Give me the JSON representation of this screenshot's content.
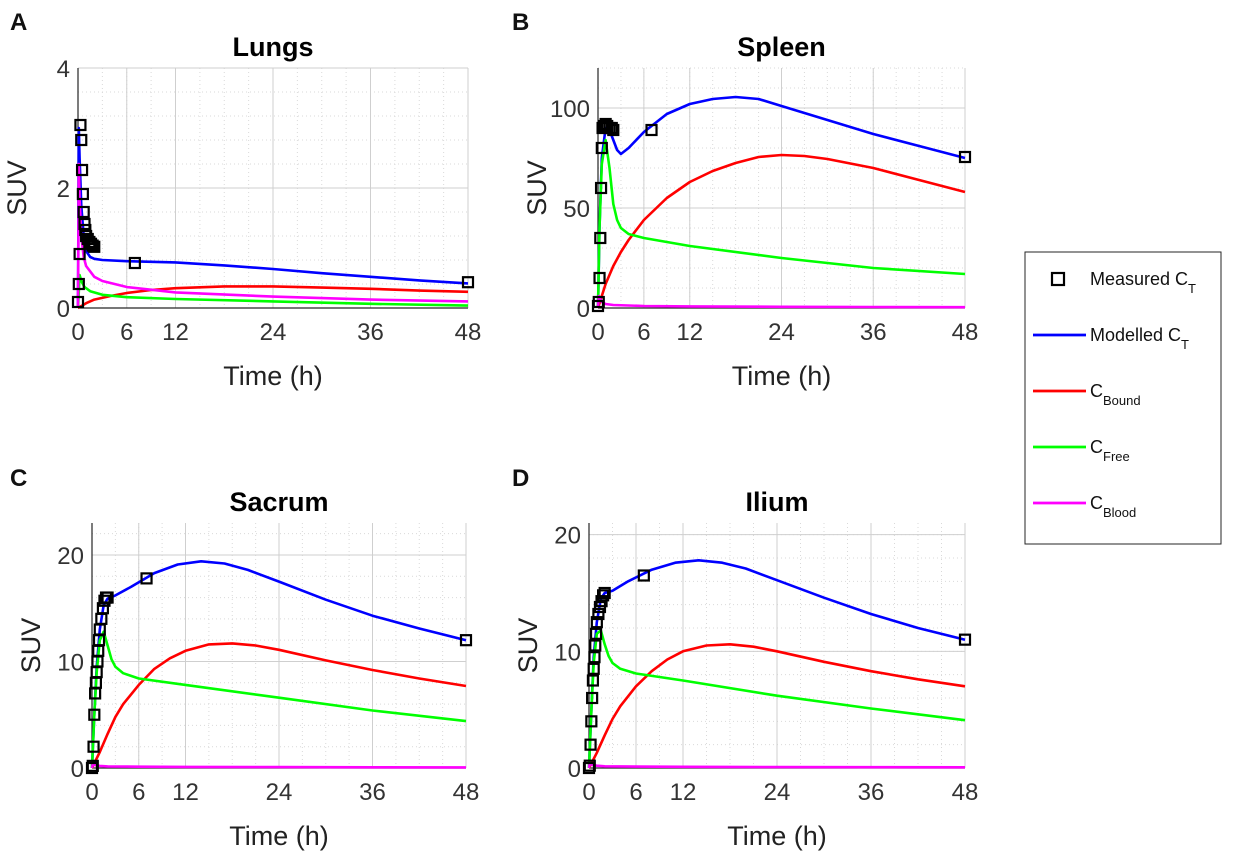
{
  "legend": {
    "entries": [
      {
        "label": "Measured C",
        "sub": "T",
        "kind": "marker",
        "color": "#000000"
      },
      {
        "label": "Modelled C",
        "sub": "T",
        "kind": "line",
        "color": "#0000ff"
      },
      {
        "label": "C",
        "sub": "Bound",
        "kind": "line",
        "color": "#ff0000"
      },
      {
        "label": "C",
        "sub": "Free",
        "kind": "line",
        "color": "#00ff00"
      },
      {
        "label": "C",
        "sub": "Blood",
        "kind": "line",
        "color": "#ff00ff"
      }
    ]
  },
  "chart_data": [
    {
      "panel": "A",
      "type": "line",
      "title": "Lungs",
      "xlabel": "Time (h)",
      "ylabel": "SUV",
      "xlim": [
        0,
        48
      ],
      "ylim": [
        0,
        4
      ],
      "xticks": [
        0,
        6,
        12,
        24,
        36,
        48
      ],
      "yticks": [
        0,
        2,
        4
      ],
      "grid": true,
      "legend": "right (shared)",
      "series": [
        {
          "name": "Modelled C_T",
          "color": "#0000ff",
          "x": [
            0,
            0.1,
            0.2,
            0.4,
            0.7,
            1,
            1.5,
            2,
            3,
            6,
            12,
            18,
            24,
            30,
            36,
            42,
            48
          ],
          "y": [
            0,
            3.0,
            2.5,
            1.7,
            1.2,
            0.95,
            0.85,
            0.82,
            0.8,
            0.78,
            0.76,
            0.71,
            0.65,
            0.58,
            0.52,
            0.46,
            0.41
          ]
        },
        {
          "name": "C_Bound",
          "color": "#ff0000",
          "x": [
            0,
            0.5,
            1,
            2,
            4,
            6,
            9,
            12,
            18,
            24,
            30,
            36,
            42,
            48
          ],
          "y": [
            0,
            0.04,
            0.08,
            0.14,
            0.2,
            0.25,
            0.3,
            0.33,
            0.36,
            0.36,
            0.34,
            0.32,
            0.29,
            0.27
          ]
        },
        {
          "name": "C_Free",
          "color": "#00ff00",
          "x": [
            0,
            0.2,
            0.4,
            0.8,
            1.5,
            3,
            6,
            12,
            24,
            36,
            48
          ],
          "y": [
            0,
            0.55,
            0.45,
            0.35,
            0.28,
            0.22,
            0.18,
            0.15,
            0.11,
            0.07,
            0.04
          ]
        },
        {
          "name": "C_Blood",
          "color": "#ff00ff",
          "x": [
            0,
            0.1,
            0.2,
            0.4,
            0.7,
            1,
            2,
            3,
            6,
            12,
            24,
            36,
            48
          ],
          "y": [
            0,
            2.4,
            1.8,
            1.2,
            0.85,
            0.7,
            0.52,
            0.45,
            0.35,
            0.26,
            0.19,
            0.14,
            0.11
          ]
        },
        {
          "name": "Measured C_T",
          "color": "#000000",
          "marker": "square",
          "x": [
            0,
            0.1,
            0.2,
            0.3,
            0.4,
            0.5,
            0.6,
            0.7,
            0.8,
            0.9,
            1.0,
            1.2,
            1.4,
            1.6,
            1.8,
            2.0,
            7,
            48
          ],
          "y": [
            0.1,
            0.4,
            0.9,
            3.05,
            2.8,
            2.3,
            1.9,
            1.6,
            1.4,
            1.3,
            1.2,
            1.15,
            1.1,
            1.07,
            1.04,
            1.02,
            0.75,
            0.43
          ]
        }
      ]
    },
    {
      "panel": "B",
      "type": "line",
      "title": "Spleen",
      "xlabel": "Time (h)",
      "ylabel": "SUV",
      "xlim": [
        0,
        48
      ],
      "ylim": [
        0,
        120
      ],
      "xticks": [
        0,
        6,
        12,
        24,
        36,
        48
      ],
      "yticks": [
        0,
        50,
        100
      ],
      "grid": true,
      "legend": "right (shared)",
      "series": [
        {
          "name": "Modelled C_T",
          "color": "#0000ff",
          "x": [
            0,
            0.2,
            0.5,
            1,
            1.5,
            2,
            2.5,
            3,
            4,
            6,
            9,
            12,
            15,
            18,
            21,
            24,
            30,
            36,
            42,
            48
          ],
          "y": [
            0,
            40,
            75,
            90,
            89,
            84,
            79,
            77,
            80,
            88,
            97,
            102,
            104.5,
            105.5,
            104.5,
            101,
            94,
            87,
            81,
            75
          ]
        },
        {
          "name": "C_Bound",
          "color": "#ff0000",
          "x": [
            0,
            0.5,
            1,
            2,
            3,
            4,
            6,
            9,
            12,
            15,
            18,
            21,
            24,
            27,
            30,
            36,
            42,
            48
          ],
          "y": [
            0,
            6,
            12,
            21,
            28,
            34,
            44,
            55,
            63,
            68.5,
            72.5,
            75.5,
            76.5,
            76,
            74.5,
            70,
            64,
            58
          ]
        },
        {
          "name": "C_Free",
          "color": "#00ff00",
          "x": [
            0,
            0.2,
            0.5,
            1,
            1.5,
            2,
            2.5,
            3,
            4,
            6,
            12,
            24,
            36,
            48
          ],
          "y": [
            0,
            40,
            72,
            84,
            70,
            52,
            44,
            40,
            37,
            35,
            31,
            25,
            20,
            17
          ]
        },
        {
          "name": "C_Blood",
          "color": "#ff00ff",
          "x": [
            0,
            0.1,
            0.5,
            1,
            2,
            6,
            12,
            24,
            36,
            48
          ],
          "y": [
            0,
            6,
            3,
            2,
            1.5,
            1,
            0.8,
            0.6,
            0.5,
            0.4
          ]
        },
        {
          "name": "Measured C_T",
          "color": "#000000",
          "marker": "square",
          "x": [
            0,
            0.1,
            0.2,
            0.3,
            0.4,
            0.5,
            0.6,
            0.8,
            1.0,
            1.2,
            1.5,
            1.8,
            2.0,
            7,
            48
          ],
          "y": [
            1,
            3,
            15,
            35,
            60,
            80,
            90,
            91,
            92,
            91,
            90,
            90,
            89,
            89,
            75.5
          ]
        }
      ]
    },
    {
      "panel": "C",
      "type": "line",
      "title": "Sacrum",
      "xlabel": "Time (h)",
      "ylabel": "SUV",
      "xlim": [
        0,
        48
      ],
      "ylim": [
        0,
        23
      ],
      "xticks": [
        0,
        6,
        12,
        24,
        36,
        48
      ],
      "yticks": [
        0,
        10,
        20
      ],
      "grid": true,
      "legend": "right (shared)",
      "series": [
        {
          "name": "Modelled C_T",
          "color": "#0000ff",
          "x": [
            0,
            0.3,
            0.6,
            1,
            1.5,
            2,
            3,
            5,
            8,
            11,
            14,
            17,
            20,
            24,
            30,
            36,
            42,
            48
          ],
          "y": [
            0,
            5,
            9.5,
            13,
            15.3,
            15.9,
            16.2,
            17,
            18.3,
            19.1,
            19.4,
            19.2,
            18.6,
            17.5,
            15.8,
            14.3,
            13.1,
            12
          ]
        },
        {
          "name": "C_Bound",
          "color": "#ff0000",
          "x": [
            0,
            1,
            2,
            3,
            4,
            6,
            8,
            10,
            12,
            15,
            18,
            21,
            24,
            30,
            36,
            42,
            48
          ],
          "y": [
            0,
            1.5,
            3.2,
            4.8,
            6,
            7.8,
            9.3,
            10.3,
            11,
            11.6,
            11.7,
            11.5,
            11.1,
            10.1,
            9.2,
            8.4,
            7.7
          ]
        },
        {
          "name": "C_Free",
          "color": "#00ff00",
          "x": [
            0,
            0.3,
            0.6,
            1,
            1.5,
            2,
            2.5,
            3,
            4,
            6,
            12,
            24,
            36,
            48
          ],
          "y": [
            0,
            5,
            9,
            12,
            12.8,
            11.5,
            10.2,
            9.5,
            8.9,
            8.4,
            7.8,
            6.6,
            5.4,
            4.4
          ]
        },
        {
          "name": "C_Blood",
          "color": "#ff00ff",
          "x": [
            0,
            0.1,
            0.5,
            1,
            2,
            6,
            12,
            24,
            36,
            48
          ],
          "y": [
            0,
            0.4,
            0.25,
            0.2,
            0.15,
            0.12,
            0.1,
            0.08,
            0.07,
            0.06
          ]
        },
        {
          "name": "Measured C_T",
          "color": "#000000",
          "marker": "square",
          "x": [
            0,
            0.1,
            0.2,
            0.3,
            0.4,
            0.5,
            0.6,
            0.7,
            0.8,
            0.9,
            1.0,
            1.2,
            1.4,
            1.6,
            1.8,
            2.0,
            7,
            48
          ],
          "y": [
            0,
            0.2,
            2,
            5,
            7,
            8,
            9,
            10,
            11,
            12,
            13,
            14,
            15,
            15.7,
            16,
            16,
            17.8,
            12
          ]
        }
      ]
    },
    {
      "panel": "D",
      "type": "line",
      "title": "Ilium",
      "xlabel": "Time (h)",
      "ylabel": "SUV",
      "xlim": [
        0,
        48
      ],
      "ylim": [
        0,
        21
      ],
      "xticks": [
        0,
        6,
        12,
        24,
        36,
        48
      ],
      "yticks": [
        0,
        10,
        20
      ],
      "grid": true,
      "legend": "right (shared)",
      "series": [
        {
          "name": "Modelled C_T",
          "color": "#0000ff",
          "x": [
            0,
            0.3,
            0.6,
            1,
            1.5,
            2,
            3,
            5,
            8,
            11,
            14,
            17,
            20,
            24,
            30,
            36,
            42,
            48
          ],
          "y": [
            0,
            5,
            9.5,
            12.5,
            14.5,
            15,
            15.2,
            16,
            17,
            17.6,
            17.8,
            17.6,
            17.1,
            16.1,
            14.6,
            13.2,
            12,
            11
          ]
        },
        {
          "name": "C_Bound",
          "color": "#ff0000",
          "x": [
            0,
            1,
            2,
            3,
            4,
            6,
            8,
            10,
            12,
            15,
            18,
            21,
            24,
            30,
            36,
            42,
            48
          ],
          "y": [
            0,
            1.3,
            2.8,
            4.2,
            5.3,
            7,
            8.3,
            9.3,
            10,
            10.5,
            10.6,
            10.4,
            10,
            9.1,
            8.3,
            7.6,
            7
          ]
        },
        {
          "name": "C_Free",
          "color": "#00ff00",
          "x": [
            0,
            0.3,
            0.6,
            1,
            1.5,
            2,
            2.5,
            3,
            4,
            6,
            12,
            24,
            36,
            48
          ],
          "y": [
            0,
            5,
            9,
            11.5,
            11.8,
            10.6,
            9.6,
            9,
            8.5,
            8.1,
            7.5,
            6.2,
            5.1,
            4.1
          ]
        },
        {
          "name": "C_Blood",
          "color": "#ff00ff",
          "x": [
            0,
            0.1,
            0.5,
            1,
            2,
            6,
            12,
            24,
            36,
            48
          ],
          "y": [
            0,
            0.4,
            0.25,
            0.2,
            0.15,
            0.12,
            0.1,
            0.08,
            0.07,
            0.06
          ]
        },
        {
          "name": "Measured C_T",
          "color": "#000000",
          "marker": "square",
          "x": [
            0,
            0.1,
            0.2,
            0.3,
            0.4,
            0.5,
            0.6,
            0.7,
            0.8,
            0.9,
            1.0,
            1.2,
            1.4,
            1.6,
            1.8,
            2.0,
            7,
            48
          ],
          "y": [
            0,
            0.2,
            2,
            4,
            6,
            7.5,
            8.5,
            9.5,
            10.5,
            11.5,
            12.5,
            13.2,
            13.8,
            14.3,
            14.8,
            15,
            16.5,
            11
          ]
        }
      ]
    }
  ]
}
